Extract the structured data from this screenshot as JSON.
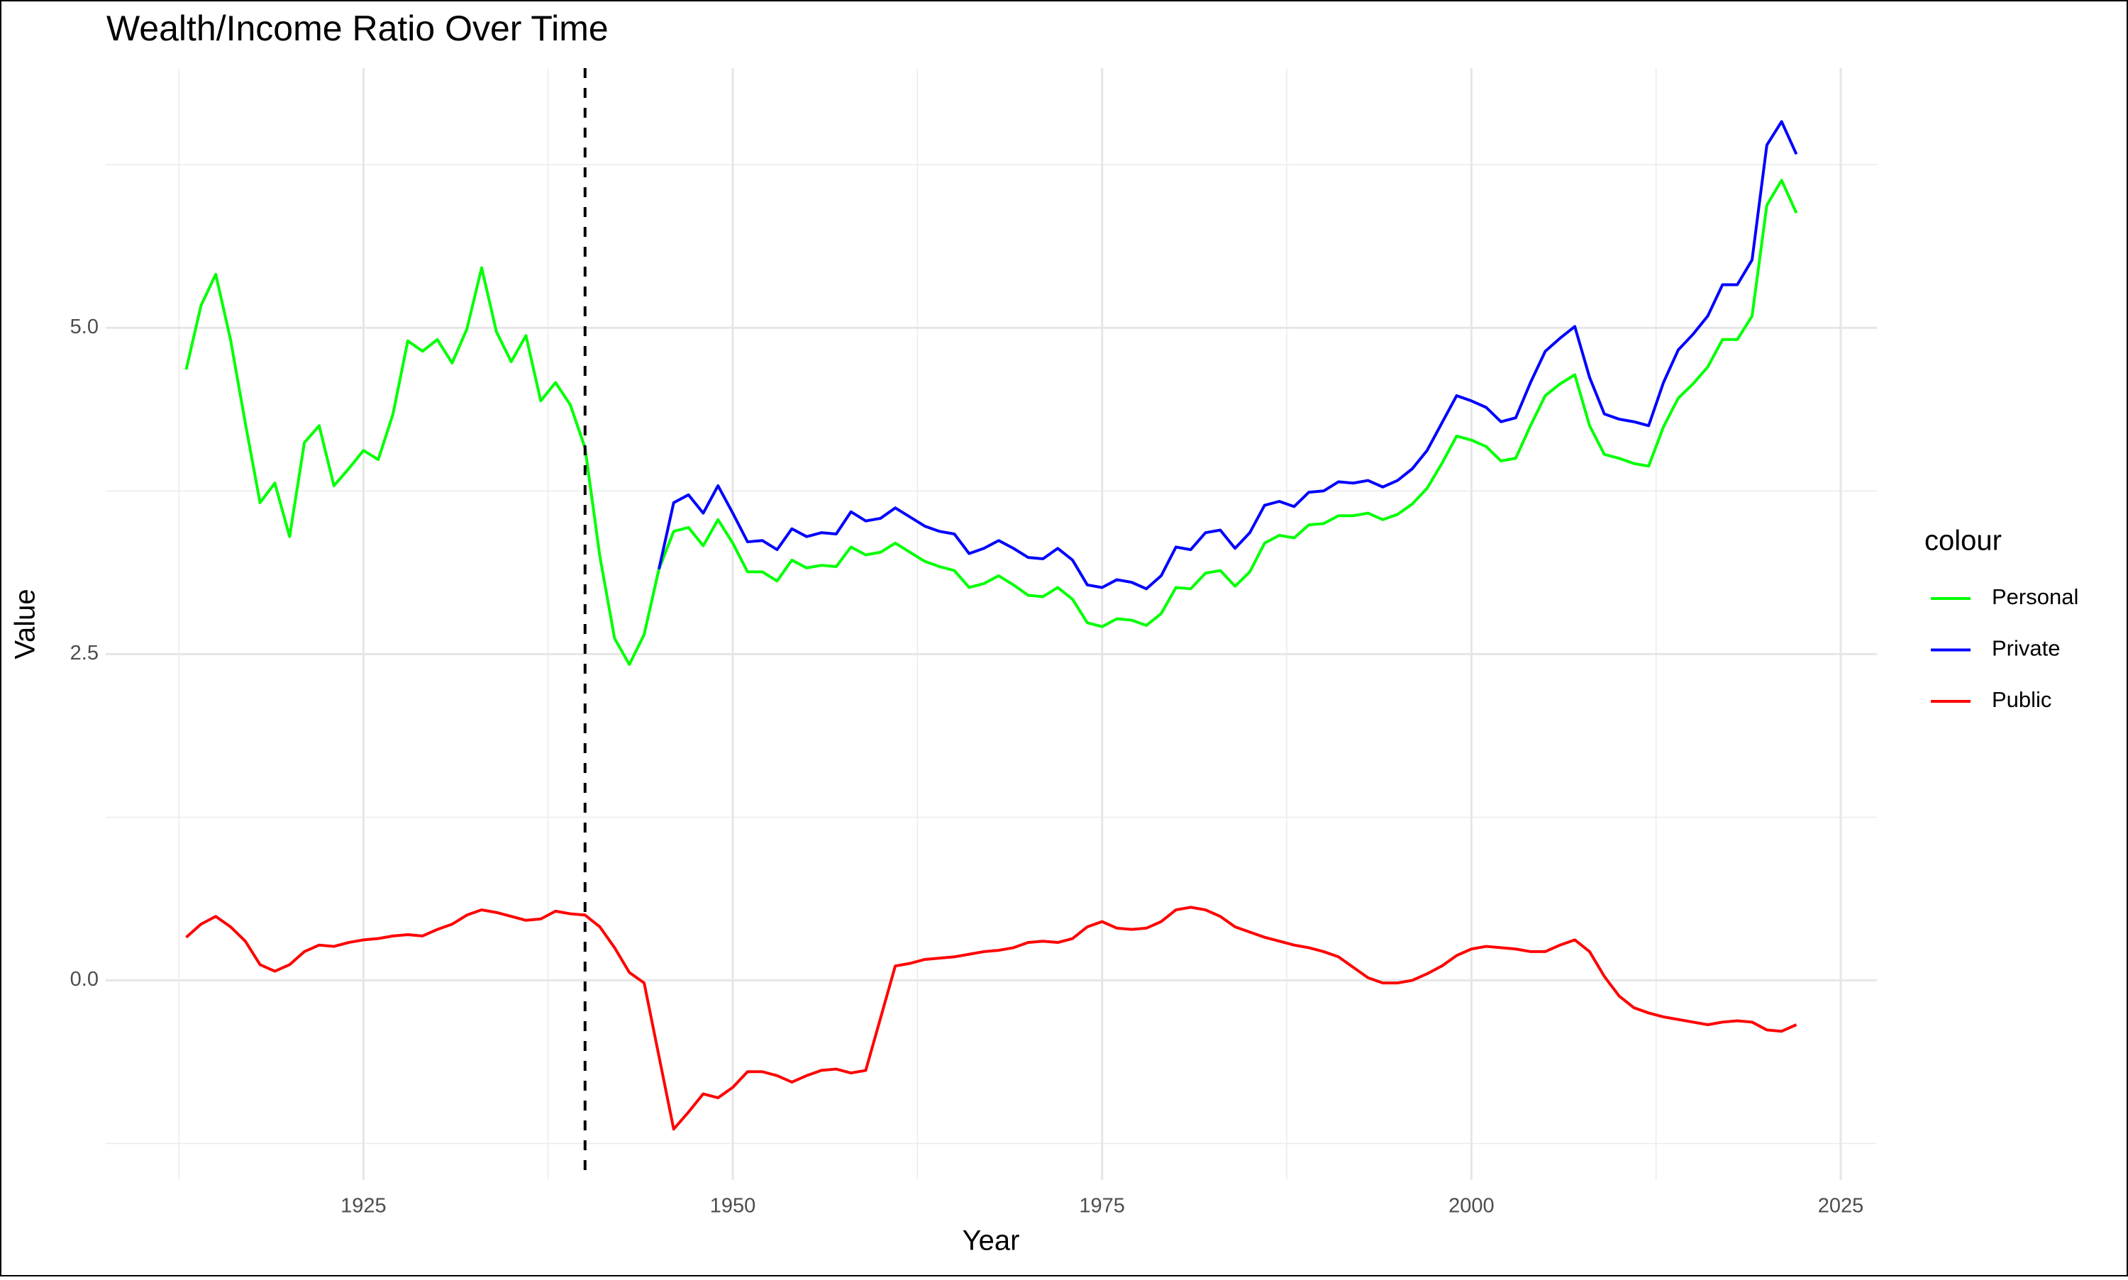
{
  "chart_data": {
    "type": "line",
    "title": "Wealth/Income Ratio Over Time",
    "x_label": "Year",
    "y_label": "Value",
    "legend_title": "colour",
    "x": [
      1913,
      1914,
      1915,
      1916,
      1917,
      1918,
      1919,
      1920,
      1921,
      1922,
      1923,
      1924,
      1925,
      1926,
      1927,
      1928,
      1929,
      1930,
      1931,
      1932,
      1933,
      1934,
      1935,
      1936,
      1937,
      1938,
      1939,
      1940,
      1941,
      1942,
      1943,
      1944,
      1945,
      1946,
      1947,
      1948,
      1949,
      1950,
      1951,
      1952,
      1953,
      1954,
      1955,
      1956,
      1957,
      1958,
      1959,
      1960,
      1961,
      1962,
      1963,
      1964,
      1965,
      1966,
      1967,
      1968,
      1969,
      1970,
      1971,
      1972,
      1973,
      1974,
      1975,
      1976,
      1977,
      1978,
      1979,
      1980,
      1981,
      1982,
      1983,
      1984,
      1985,
      1986,
      1987,
      1988,
      1989,
      1990,
      1991,
      1992,
      1993,
      1994,
      1995,
      1996,
      1997,
      1998,
      1999,
      2000,
      2001,
      2002,
      2003,
      2004,
      2005,
      2006,
      2007,
      2008,
      2009,
      2010,
      2011,
      2012,
      2013,
      2014,
      2015,
      2016,
      2017,
      2018,
      2019,
      2020,
      2021,
      2022
    ],
    "series": [
      {
        "name": "Personal",
        "color": "#00FF00",
        "values": [
          4.68,
          5.17,
          5.41,
          4.91,
          4.27,
          3.66,
          3.81,
          3.4,
          4.12,
          4.25,
          3.79,
          3.92,
          4.06,
          3.99,
          4.34,
          4.9,
          4.82,
          4.91,
          4.73,
          4.99,
          5.46,
          4.97,
          4.74,
          4.94,
          4.44,
          4.58,
          4.41,
          4.08,
          3.25,
          2.62,
          2.42,
          2.65,
          3.15,
          3.44,
          3.47,
          3.33,
          3.53,
          3.35,
          3.13,
          3.13,
          3.06,
          3.22,
          3.16,
          3.18,
          3.17,
          3.32,
          3.26,
          3.28,
          3.35,
          3.28,
          3.21,
          3.17,
          3.14,
          3.01,
          3.04,
          3.1,
          3.03,
          2.95,
          2.94,
          3.01,
          2.92,
          2.74,
          2.71,
          2.77,
          2.76,
          2.72,
          2.81,
          3.01,
          3.0,
          3.12,
          3.14,
          3.02,
          3.13,
          3.35,
          3.41,
          3.39,
          3.49,
          3.5,
          3.56,
          3.56,
          3.58,
          3.53,
          3.57,
          3.65,
          3.77,
          3.96,
          4.17,
          4.14,
          4.09,
          3.98,
          4.0,
          4.25,
          4.48,
          4.57,
          4.64,
          4.25,
          4.03,
          4.0,
          3.96,
          3.94,
          4.24,
          4.46,
          4.57,
          4.7,
          4.91,
          4.91,
          5.09,
          5.94,
          6.13,
          5.88
        ]
      },
      {
        "name": "Private",
        "color": "#0000FF",
        "values": [
          null,
          null,
          null,
          null,
          null,
          null,
          null,
          null,
          null,
          null,
          null,
          null,
          null,
          null,
          null,
          null,
          null,
          null,
          null,
          null,
          null,
          null,
          null,
          null,
          null,
          null,
          null,
          null,
          null,
          null,
          null,
          null,
          3.15,
          3.66,
          3.72,
          3.58,
          3.79,
          3.58,
          3.36,
          3.37,
          3.3,
          3.46,
          3.4,
          3.43,
          3.42,
          3.59,
          3.52,
          3.54,
          3.62,
          3.55,
          3.48,
          3.44,
          3.42,
          3.27,
          3.31,
          3.37,
          3.31,
          3.24,
          3.23,
          3.31,
          3.22,
          3.03,
          3.01,
          3.07,
          3.05,
          3.0,
          3.1,
          3.32,
          3.3,
          3.43,
          3.45,
          3.31,
          3.43,
          3.64,
          3.67,
          3.63,
          3.74,
          3.75,
          3.82,
          3.81,
          3.83,
          3.78,
          3.83,
          3.92,
          4.06,
          4.27,
          4.48,
          4.44,
          4.39,
          4.28,
          4.31,
          4.58,
          4.82,
          4.92,
          5.01,
          4.62,
          4.34,
          4.3,
          4.28,
          4.25,
          4.58,
          4.83,
          4.95,
          5.09,
          5.33,
          5.33,
          5.52,
          6.4,
          6.58,
          6.33
        ]
      },
      {
        "name": "Public",
        "color": "#FF0000",
        "values": [
          0.33,
          0.43,
          0.49,
          0.41,
          0.3,
          0.12,
          0.07,
          0.12,
          0.22,
          0.27,
          0.26,
          0.29,
          0.31,
          0.32,
          0.34,
          0.35,
          0.34,
          0.39,
          0.43,
          0.5,
          0.54,
          0.52,
          0.49,
          0.46,
          0.47,
          0.53,
          0.51,
          0.5,
          0.41,
          0.25,
          0.06,
          -0.02,
          -0.58,
          -1.14,
          -1.01,
          -0.87,
          -0.9,
          -0.82,
          -0.7,
          -0.7,
          -0.73,
          -0.78,
          -0.73,
          -0.69,
          -0.68,
          -0.71,
          -0.69,
          -0.29,
          0.11,
          0.13,
          0.16,
          0.17,
          0.18,
          0.2,
          0.22,
          0.23,
          0.25,
          0.29,
          0.3,
          0.29,
          0.32,
          0.41,
          0.45,
          0.4,
          0.39,
          0.4,
          0.45,
          0.54,
          0.56,
          0.54,
          0.49,
          0.41,
          0.37,
          0.33,
          0.3,
          0.27,
          0.25,
          0.22,
          0.18,
          0.1,
          0.02,
          -0.02,
          -0.02,
          0.0,
          0.05,
          0.11,
          0.19,
          0.24,
          0.26,
          0.25,
          0.24,
          0.22,
          0.22,
          0.27,
          0.31,
          0.22,
          0.03,
          -0.12,
          -0.21,
          -0.25,
          -0.28,
          -0.3,
          -0.32,
          -0.34,
          -0.32,
          -0.31,
          -0.32,
          -0.38,
          -0.39,
          -0.34
        ]
      }
    ],
    "xlim": [
      1907.55,
      2027.45
    ],
    "xticks": [
      1925,
      1950,
      1975,
      2000,
      2025
    ],
    "x_minor_grid": [
      1912.5,
      1937.5,
      1962.5,
      1987.5,
      2012.5
    ],
    "ylim": [
      -1.53,
      6.99
    ],
    "yticks": [
      {
        "value": 0,
        "label": "0.0"
      },
      {
        "value": 2.5,
        "label": "2.5"
      },
      {
        "value": 5,
        "label": "5.0"
      }
    ],
    "y_minor_grid": [
      -1.25,
      1.25,
      3.75,
      6.25
    ],
    "grid": true,
    "legend": "right",
    "vline": {
      "x": 1940,
      "color": "#000000",
      "style": "dashed"
    }
  }
}
